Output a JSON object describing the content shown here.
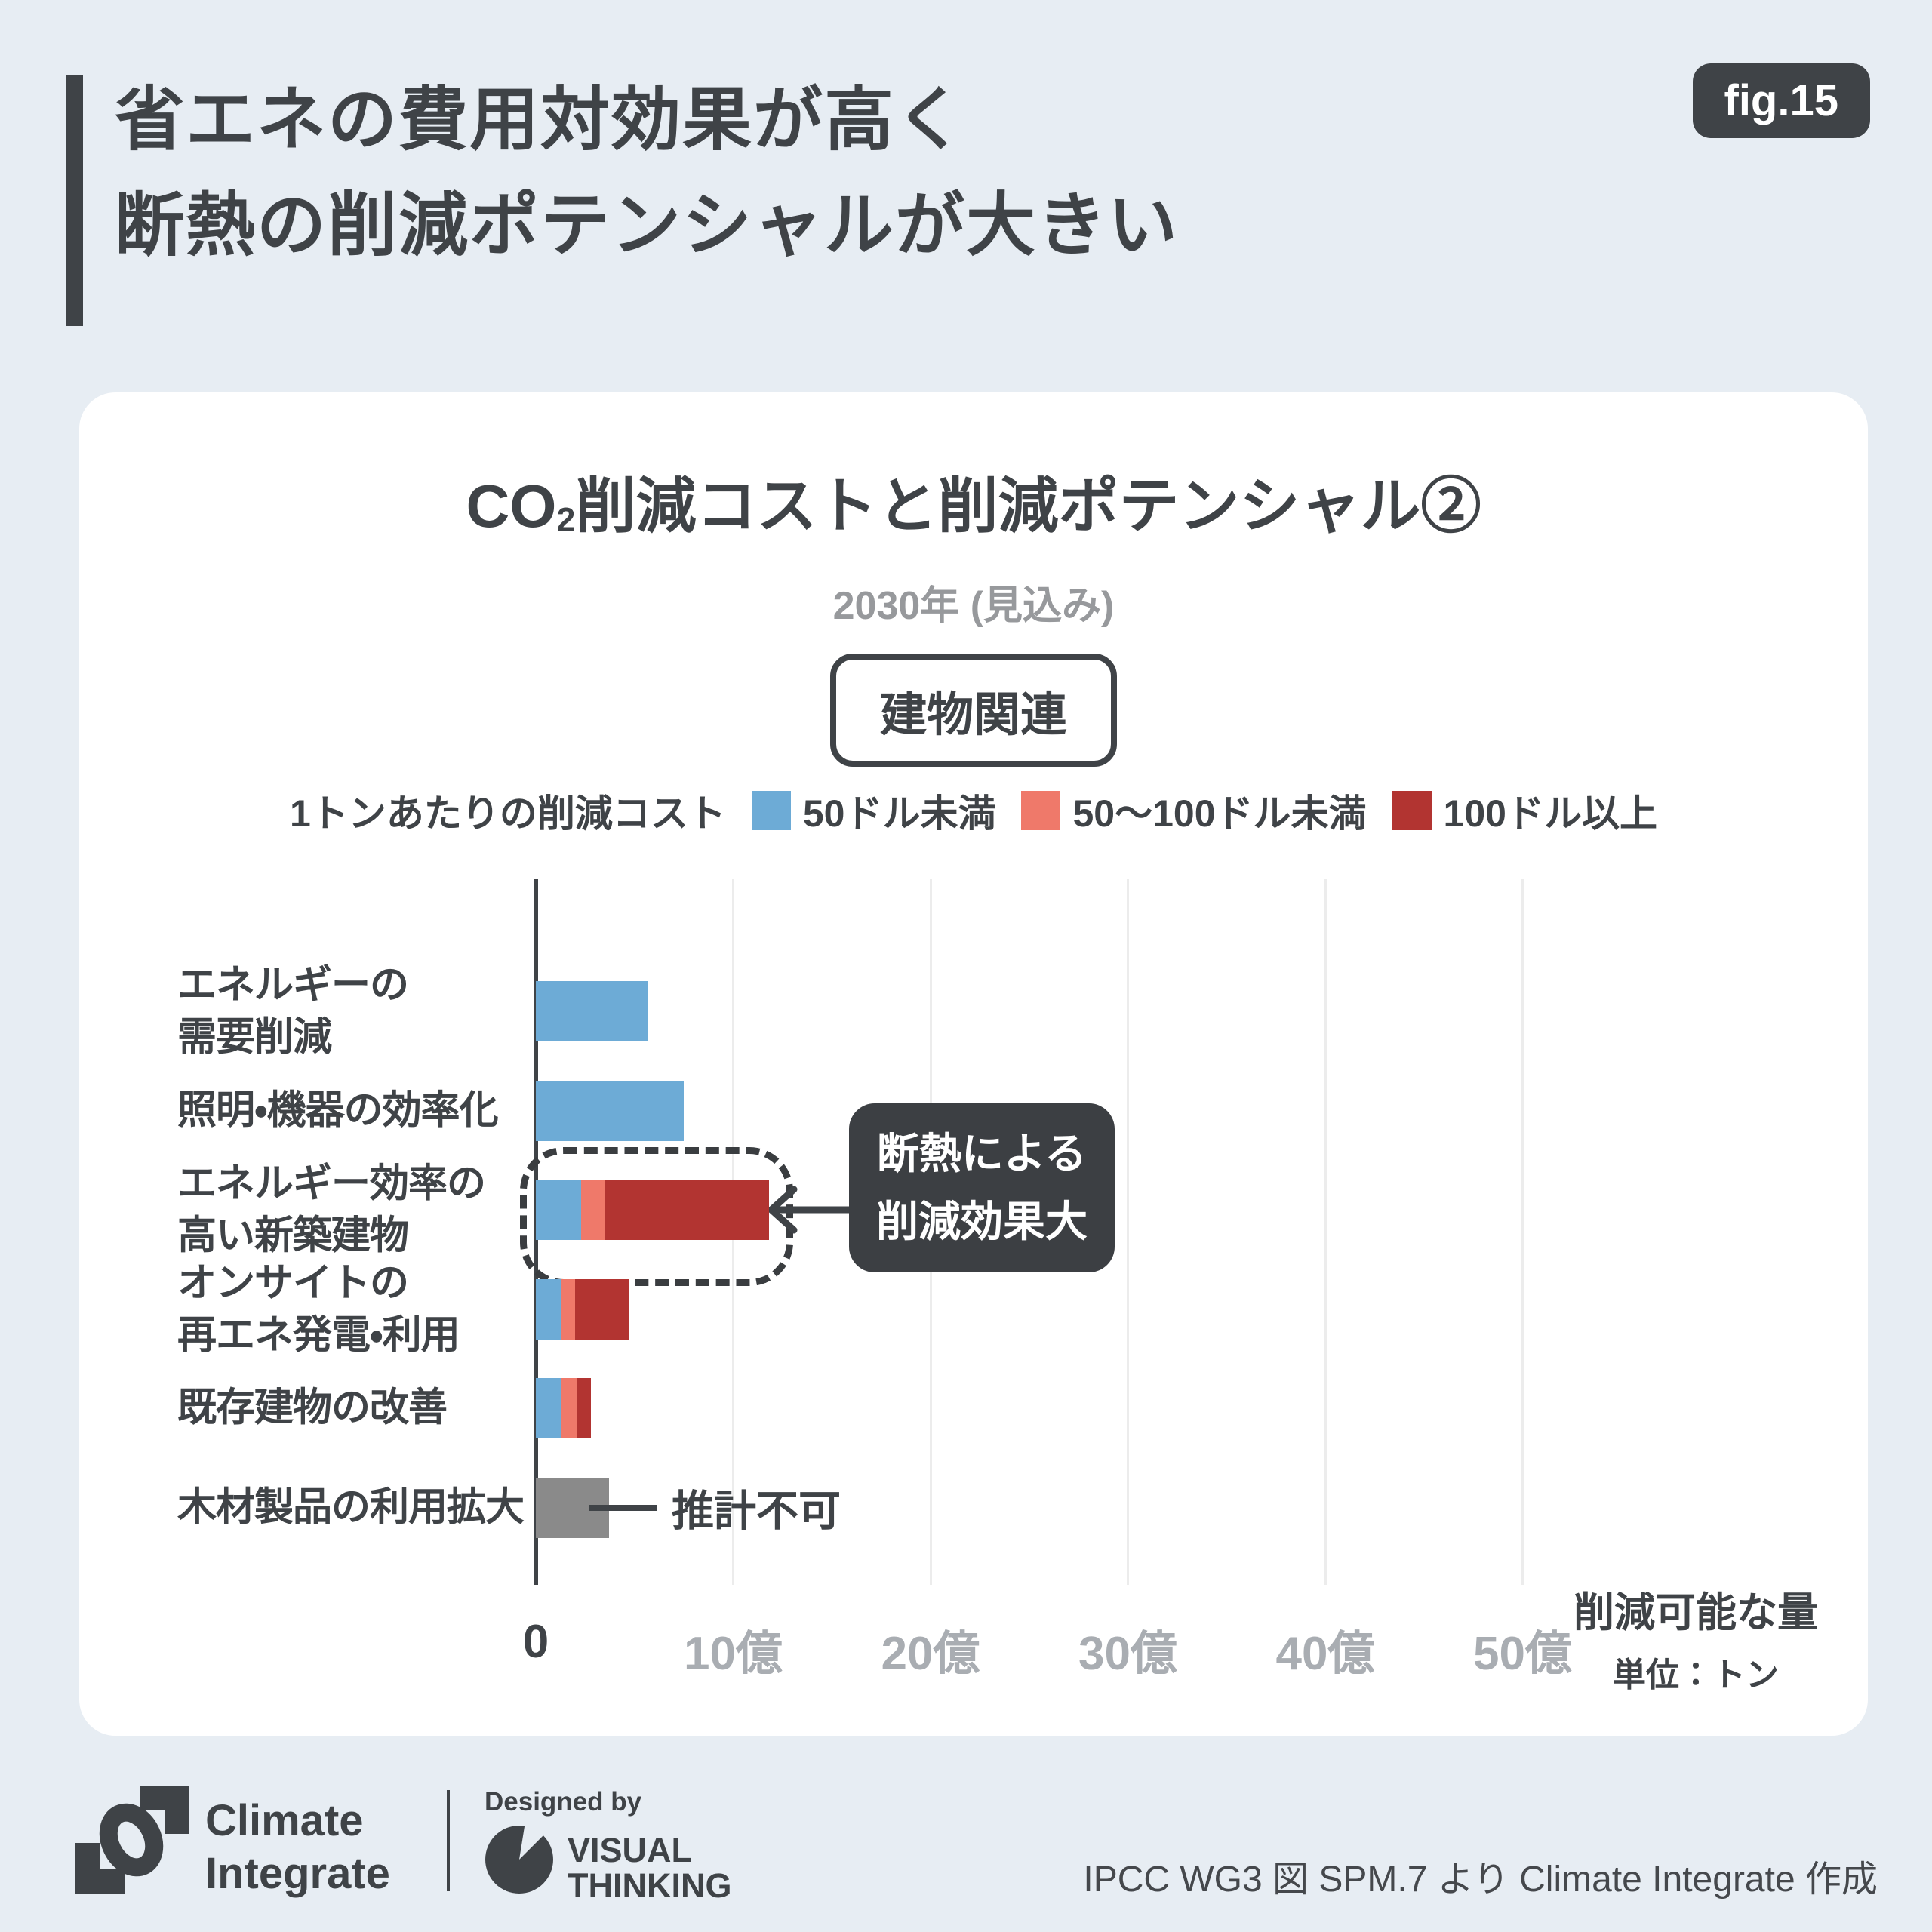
{
  "header": {
    "fig_label": "fig.15",
    "title_lines": [
      "省エネの費用対効果が高く",
      "断熱の削減ポテンシャルが大きい"
    ]
  },
  "card": {
    "title_co": "CO",
    "title_sub2": "2",
    "title_rest": "削減コストと削減ポテンシャル②",
    "subtitle": "2030年 (見込み)",
    "category_badge": "建物関連"
  },
  "legend": {
    "label": "1トンあたりの削減コスト",
    "items": [
      {
        "label": "50ドル未満",
        "color": "#6DABD6"
      },
      {
        "label": "50〜100ドル未満",
        "color": "#EF796A"
      },
      {
        "label": "100ドル以上",
        "color": "#B23431"
      }
    ]
  },
  "chart_data": {
    "type": "bar",
    "orientation": "horizontal",
    "title": "CO2削減コストと削減ポテンシャル②",
    "subtitle": "2030年 (見込み)",
    "group": "建物関連",
    "unit_label": "削減可能な量",
    "unit_note": "単位：トン",
    "value_unit": "億トン",
    "xlim": [
      0,
      52
    ],
    "grid": true,
    "x_axis": {
      "ticks": [
        {
          "label": "0",
          "value": 0
        },
        {
          "label": "10億",
          "value": 10
        },
        {
          "label": "20億",
          "value": 20
        },
        {
          "label": "30億",
          "value": 30
        },
        {
          "label": "40億",
          "value": 40
        },
        {
          "label": "50億",
          "value": 50
        }
      ]
    },
    "categories": [
      {
        "label_lines": [
          "エネルギーの",
          "需要削減"
        ],
        "segments": [
          {
            "series": "50ドル未満",
            "value": 5.7,
            "color": "#6DABD6"
          }
        ]
      },
      {
        "label_lines": [
          "照明・機器の効率化"
        ],
        "segments": [
          {
            "series": "50ドル未満",
            "value": 7.5,
            "color": "#6DABD6"
          }
        ]
      },
      {
        "label_lines": [
          "エネルギー効率の",
          "高い新築建物"
        ],
        "highlighted": true,
        "segments": [
          {
            "series": "50ドル未満",
            "value": 2.3,
            "color": "#6DABD6"
          },
          {
            "series": "50〜100ドル未満",
            "value": 1.2,
            "color": "#EF796A"
          },
          {
            "series": "100ドル以上",
            "value": 8.3,
            "color": "#B23431"
          }
        ]
      },
      {
        "label_lines": [
          "オンサイトの",
          "再エネ発電・利用"
        ],
        "segments": [
          {
            "series": "50ドル未満",
            "value": 1.3,
            "color": "#6DABD6"
          },
          {
            "series": "50〜100ドル未満",
            "value": 0.7,
            "color": "#EF796A"
          },
          {
            "series": "100ドル以上",
            "value": 2.7,
            "color": "#B23431"
          }
        ]
      },
      {
        "label_lines": [
          "既存建物の改善"
        ],
        "segments": [
          {
            "series": "50ドル未満",
            "value": 1.3,
            "color": "#6DABD6"
          },
          {
            "series": "50〜100ドル未満",
            "value": 0.8,
            "color": "#EF796A"
          },
          {
            "series": "100ドル以上",
            "value": 0.7,
            "color": "#B23431"
          }
        ]
      },
      {
        "label_lines": [
          "木材製品の利用拡大"
        ],
        "note": "推計不可",
        "segments": [
          {
            "series": "推計不可",
            "value": 3.7,
            "color": "#8A8A8A"
          }
        ]
      }
    ],
    "annotation": {
      "lines": [
        "断熱による",
        "削減効果大"
      ],
      "target": "エネルギー効率の高い新築建物"
    }
  },
  "footer": {
    "brand_line1": "Climate",
    "brand_line2": "Integrate",
    "designed_by": "Designed by",
    "studio_line1": "VISUAL",
    "studio_line2": "THINKING",
    "credit": "IPCC WG3 図 SPM.7 より Climate Integrate 作成"
  },
  "colors": {
    "background": "#E7EDF3",
    "card": "#FFFFFF",
    "ink": "#3F4347",
    "subtitle_gray": "#97999C",
    "tick_gray": "#A9ADB2",
    "gridline": "#ECECEC",
    "callout_bg": "#3C3F43",
    "cost_low": "#6DABD6",
    "cost_mid": "#EF796A",
    "cost_high": "#B23431",
    "no_estimate": "#8A8A8A"
  }
}
